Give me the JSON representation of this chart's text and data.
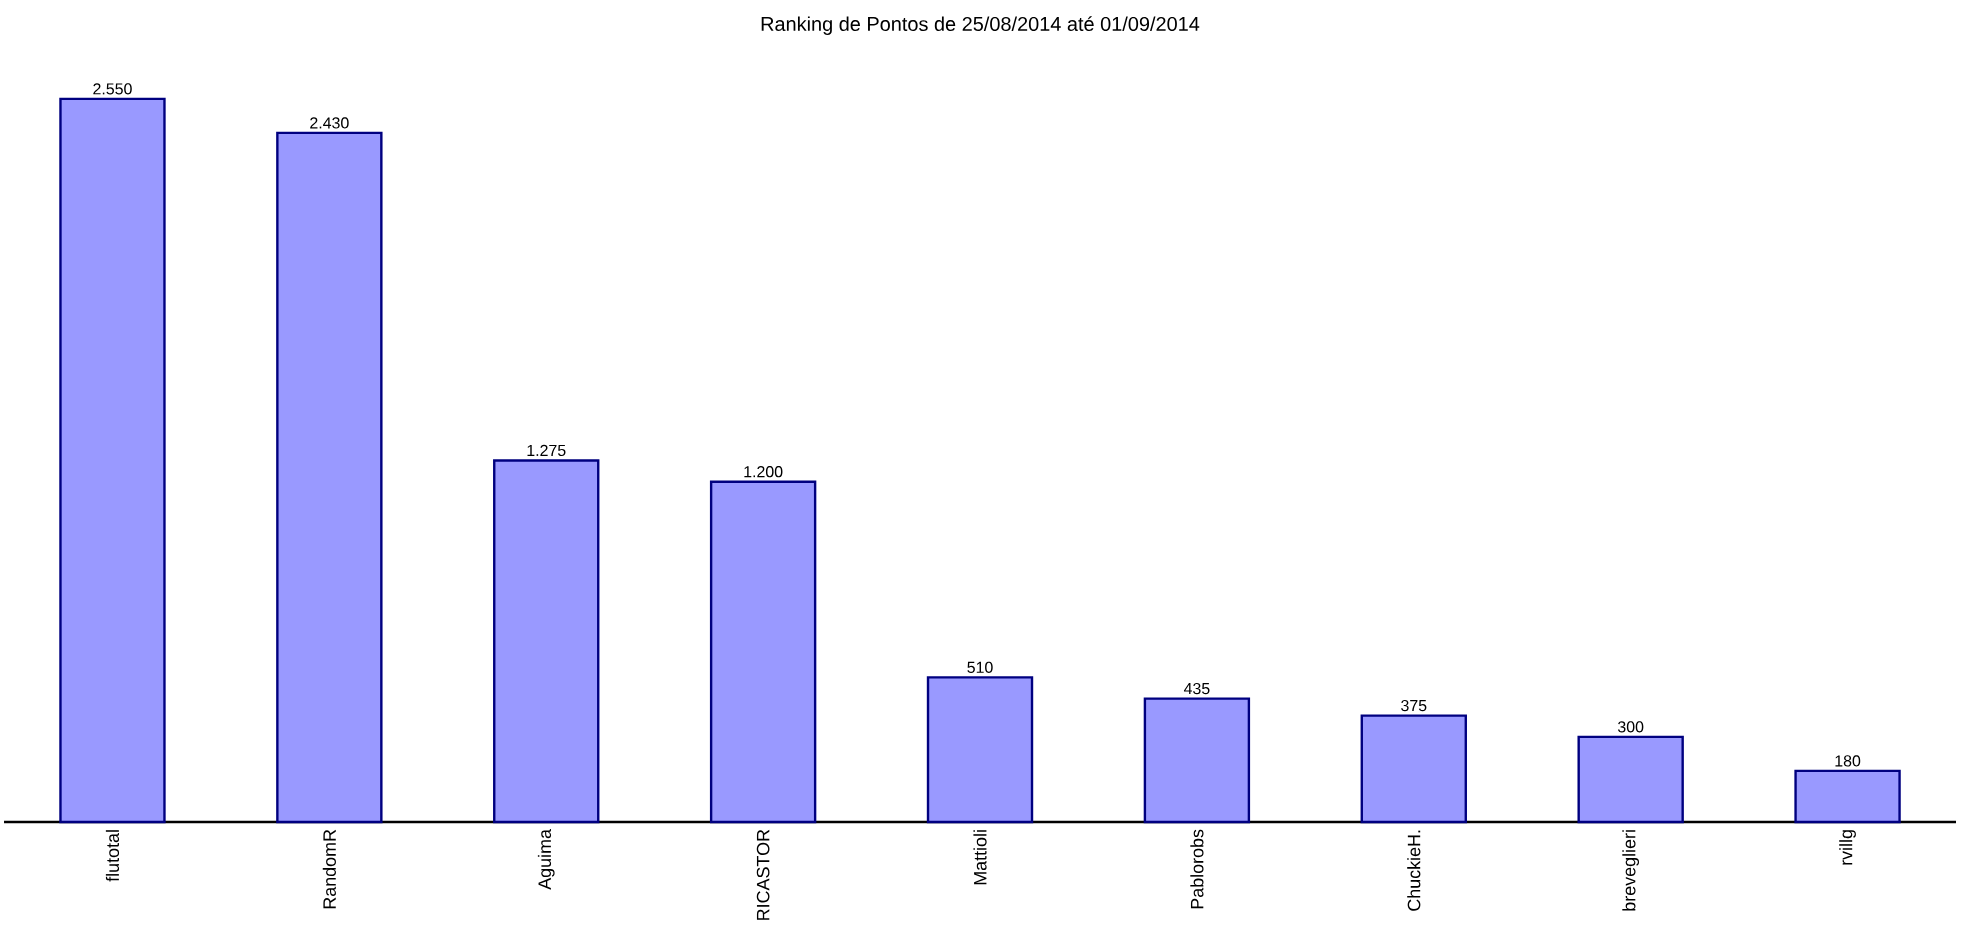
{
  "chart_data": {
    "type": "bar",
    "title": "Ranking de Pontos de 25/08/2014 até 01/09/2014",
    "categories": [
      "flutotal",
      "RandomR",
      "Aguima",
      "RICASTOR",
      "Mattioli",
      "Pablorobs",
      "ChuckieH.",
      "breveglieri",
      "rvillg"
    ],
    "values": [
      2550,
      2430,
      1275,
      1200,
      510,
      435,
      375,
      300,
      180
    ],
    "value_labels": [
      "2.550",
      "2.430",
      "1.275",
      "1.200",
      "510",
      "435",
      "375",
      "300",
      "180"
    ],
    "color": "#9999ff"
  }
}
